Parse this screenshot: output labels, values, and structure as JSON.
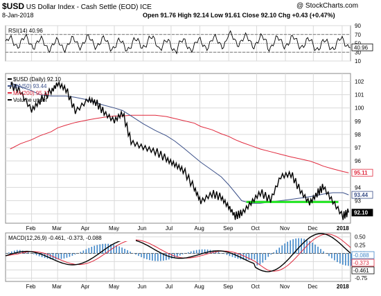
{
  "header": {
    "symbol": "$USD",
    "name": "US Dollar Index - Cash Settle (EOD)",
    "exchange": "ICE",
    "brand": "@ StockCharts.com",
    "date": "8-Jan-2018",
    "quote": "Open 91.76  High 92.14  Low 91.61  Close 92.10  Chg +0.43 (+0.47%)"
  },
  "colors": {
    "price": "#000000",
    "ma50": "#3a4f88",
    "ma200": "#e0283c",
    "support": "#22e622",
    "rsi": "#000000",
    "macd": "#000000",
    "signal": "#e0283c",
    "histogram": "#3f86c8",
    "grid": "#d9d9d9"
  },
  "chart_data": [
    {
      "type": "line",
      "title": "RSI(14) 40.96",
      "series": [
        {
          "name": "RSI(14)",
          "last": 40.96
        }
      ],
      "yticks": [
        90,
        70,
        50,
        30,
        10
      ],
      "ylim": [
        10,
        90
      ],
      "reference_lines": [
        70,
        30
      ],
      "last_label": "40.96",
      "grid": true
    },
    {
      "type": "line",
      "title": "$USD (Daily) 92.10",
      "legend": [
        "MA(50) 93.44",
        "MA(200) 95.11",
        "Volume undef"
      ],
      "legend_placement": "top-left",
      "x": [
        "2017-01-09",
        "2017-01-20",
        "2017-02-01",
        "2017-02-10",
        "2017-02-22",
        "2017-03-01",
        "2017-03-10",
        "2017-03-20",
        "2017-04-03",
        "2017-04-11",
        "2017-04-20",
        "2017-05-01",
        "2017-05-10",
        "2017-05-19",
        "2017-06-01",
        "2017-06-14",
        "2017-06-26",
        "2017-07-05",
        "2017-07-14",
        "2017-07-26",
        "2017-08-02",
        "2017-08-14",
        "2017-08-24",
        "2017-09-01",
        "2017-09-08",
        "2017-09-15",
        "2017-09-25",
        "2017-10-05",
        "2017-10-16",
        "2017-10-27",
        "2017-11-07",
        "2017-11-17",
        "2017-11-27",
        "2017-12-05",
        "2017-12-12",
        "2017-12-22",
        "2018-01-02",
        "2018-01-08"
      ],
      "series": [
        {
          "name": "$USD (Daily)",
          "values": [
            101.7,
            101.2,
            99.8,
            100.5,
            101.2,
            101.8,
            101.4,
            99.7,
            100.6,
            100.4,
            99.6,
            99.0,
            99.6,
            97.4,
            97.0,
            96.7,
            96.1,
            95.7,
            95.3,
            93.9,
            92.9,
            93.5,
            93.2,
            92.5,
            91.8,
            92.0,
            92.8,
            93.6,
            93.0,
            94.8,
            95.0,
            93.7,
            92.8,
            93.5,
            94.0,
            92.9,
            91.8,
            92.1
          ]
        },
        {
          "name": "MA(50)",
          "values": [
            101.9,
            101.6,
            101.3,
            101.0,
            100.9,
            100.9,
            100.9,
            100.8,
            100.6,
            100.4,
            100.2,
            100.0,
            99.8,
            99.4,
            98.8,
            98.3,
            97.9,
            97.5,
            97.0,
            96.3,
            95.9,
            95.3,
            94.8,
            94.2,
            93.6,
            93.0,
            92.8,
            92.8,
            92.9,
            93.0,
            93.1,
            93.2,
            93.3,
            93.4,
            93.5,
            93.6,
            93.6,
            93.44
          ]
        },
        {
          "name": "MA(200)",
          "values": [
            96.9,
            97.3,
            97.6,
            97.9,
            98.2,
            98.5,
            98.7,
            98.9,
            99.1,
            99.2,
            99.3,
            99.4,
            99.4,
            99.45,
            99.45,
            99.45,
            99.35,
            99.2,
            99.05,
            98.85,
            98.6,
            98.35,
            98.05,
            97.85,
            97.6,
            97.4,
            97.15,
            96.9,
            96.7,
            96.5,
            96.3,
            96.15,
            96.0,
            95.8,
            95.6,
            95.4,
            95.2,
            95.11
          ]
        }
      ],
      "support_line": {
        "from": "2017-09-20",
        "to": "2017-12-28",
        "value": 92.9
      },
      "yticks": [
        102,
        101,
        100,
        99,
        98,
        97,
        96,
        95,
        94,
        93,
        92
      ],
      "ylim": [
        91.3,
        102.6
      ],
      "last_labels": {
        "ma200": "95.11",
        "ma50": "93.44",
        "price": "92.10"
      },
      "xticks": [
        "Feb",
        "Mar",
        "Apr",
        "May",
        "Jun",
        "Jul",
        "Aug",
        "Sep",
        "Oct",
        "Nov",
        "Dec",
        "2018"
      ],
      "grid": true
    },
    {
      "type": "line",
      "title": "MACD(12,26,9) -0.461, -0.373, -0.088",
      "series": [
        {
          "name": "MACD",
          "last": -0.461
        },
        {
          "name": "Signal",
          "last": -0.373
        },
        {
          "name": "Histogram",
          "last": -0.088
        }
      ],
      "yticks": [
        "0.50",
        "0.25",
        "0.00",
        "-0.25",
        "-0.50",
        "-0.75"
      ],
      "ylim": [
        -0.85,
        0.62
      ],
      "last_labels": [
        "-0.088",
        "-0.373",
        "-0.461"
      ],
      "xticks": [
        "Feb",
        "Mar",
        "Apr",
        "May",
        "Jun",
        "Jul",
        "Aug",
        "Sep",
        "Oct",
        "Nov",
        "Dec",
        "2018"
      ],
      "grid": true
    }
  ]
}
